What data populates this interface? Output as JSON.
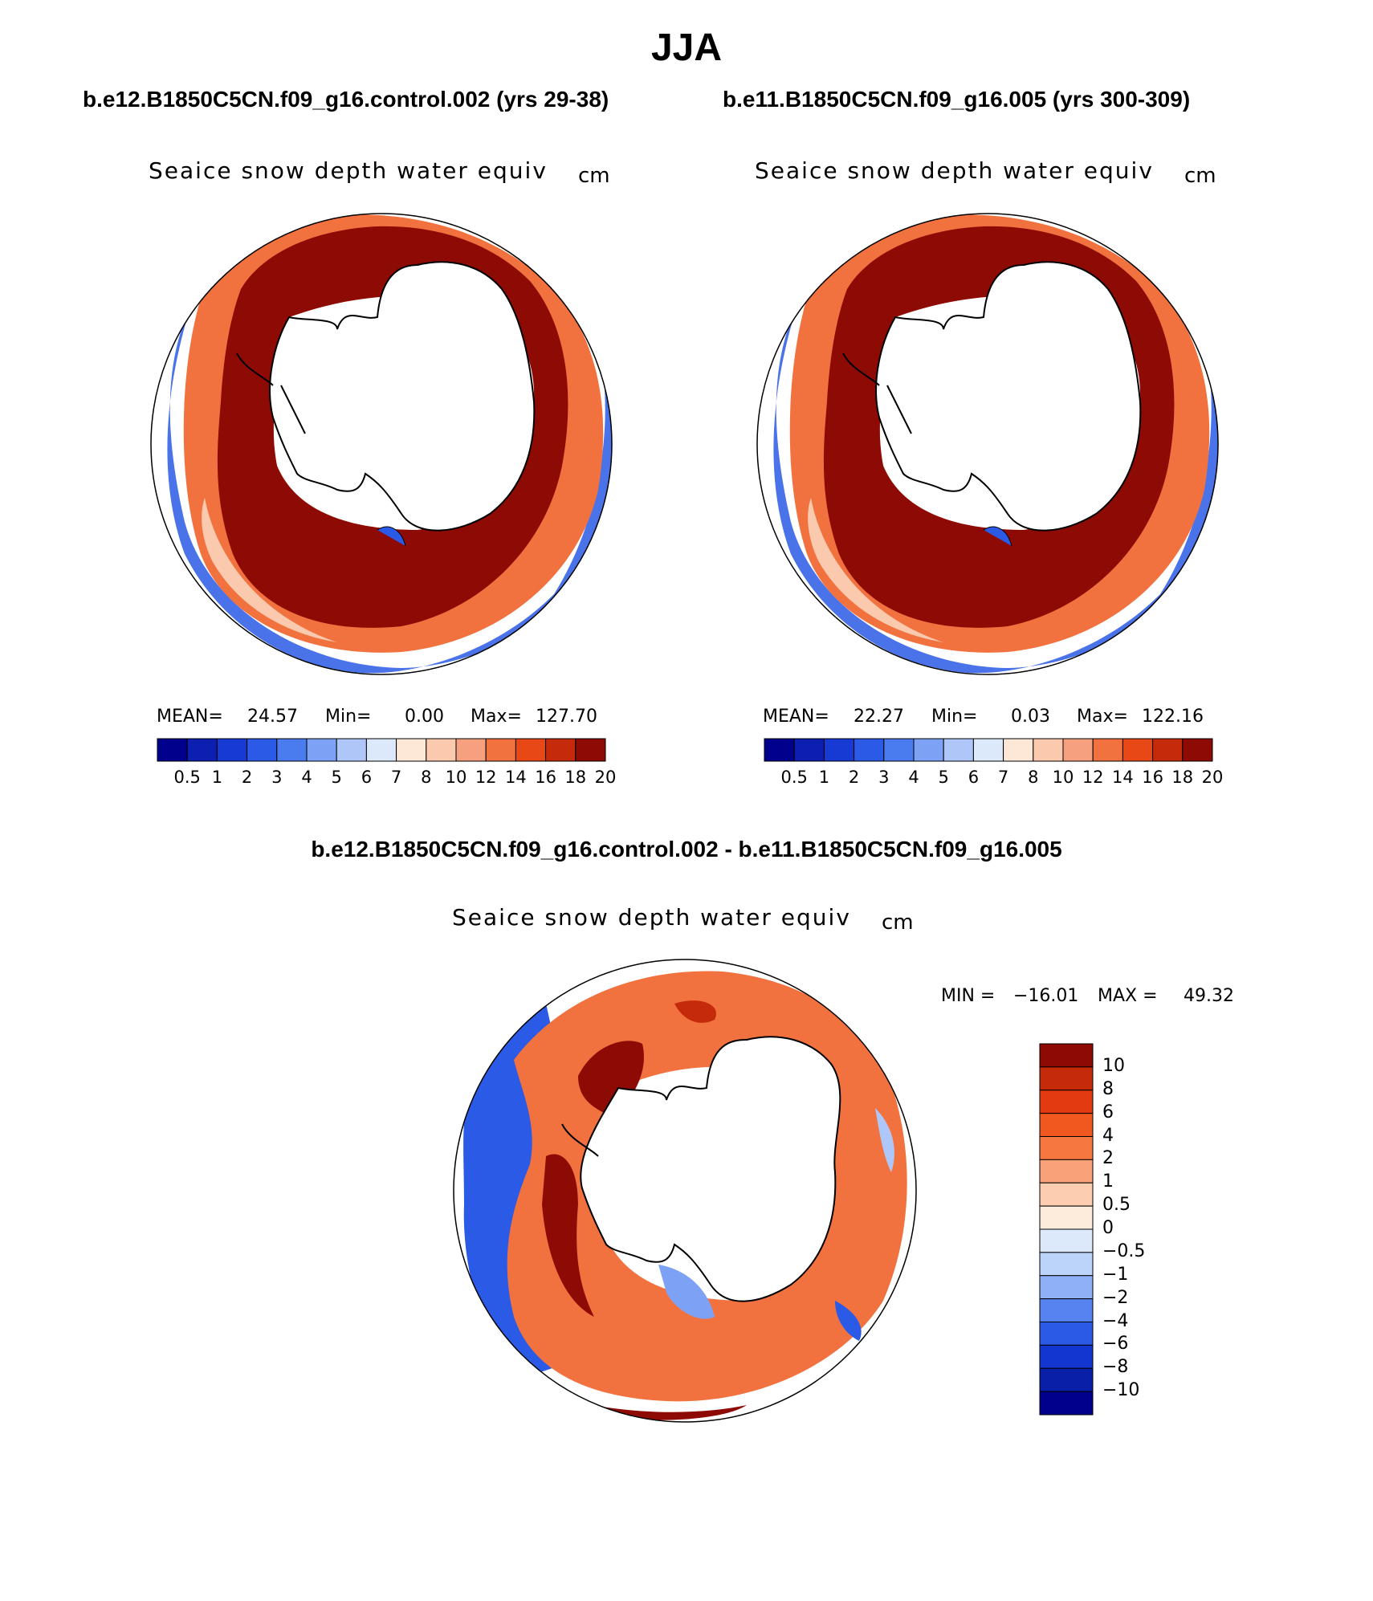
{
  "title": "JJA",
  "panels": [
    {
      "case": "b.e12.B1850C5CN.f09_g16.control.002 (yrs 29-38)",
      "variable": "Seaice snow depth water equiv",
      "units": "cm",
      "stats": {
        "mean_label": "MEAN=",
        "mean": "24.57",
        "min_label": "Min=",
        "min": "0.00",
        "max_label": "Max=",
        "max": "127.70"
      }
    },
    {
      "case": "b.e11.B1850C5CN.f09_g16.005 (yrs 300-309)",
      "variable": "Seaice snow depth water equiv",
      "units": "cm",
      "stats": {
        "mean_label": "MEAN=",
        "mean": "22.27",
        "min_label": "Min=",
        "min": "0.03",
        "max_label": "Max=",
        "max": "122.16"
      }
    }
  ],
  "difference": {
    "title": "b.e12.B1850C5CN.f09_g16.control.002 - b.e11.B1850C5CN.f09_g16.005",
    "variable": "Seaice snow depth water equiv",
    "units": "cm",
    "min_label": "MIN =",
    "min": "−16.01",
    "max_label": "MAX =",
    "max": "49.32"
  },
  "chart_data": [
    {
      "type": "heatmap",
      "projection": "south-polar-stereographic",
      "title": "b.e12.B1850C5CN.f09_g16.control.002 (yrs 29-38)",
      "variable": "Seaice snow depth water equiv",
      "units": "cm",
      "levels": [
        "0.5",
        "1",
        "2",
        "3",
        "4",
        "5",
        "6",
        "7",
        "8",
        "10",
        "12",
        "14",
        "16",
        "18",
        "20"
      ],
      "colors": [
        "#00008c",
        "#0c1fb0",
        "#1739d4",
        "#2a5ae6",
        "#4a7cf0",
        "#7da2f5",
        "#aec6f8",
        "#dce9fb",
        "#fde8d8",
        "#fbc9ad",
        "#f7a07f",
        "#f2723f",
        "#e84816",
        "#c52b0a",
        "#8e0a05"
      ],
      "mean": 24.57,
      "min": 0.0,
      "max": 127.7
    },
    {
      "type": "heatmap",
      "projection": "south-polar-stereographic",
      "title": "b.e11.B1850C5CN.f09_g16.005 (yrs 300-309)",
      "variable": "Seaice snow depth water equiv",
      "units": "cm",
      "levels": [
        "0.5",
        "1",
        "2",
        "3",
        "4",
        "5",
        "6",
        "7",
        "8",
        "10",
        "12",
        "14",
        "16",
        "18",
        "20"
      ],
      "colors": [
        "#00008c",
        "#0c1fb0",
        "#1739d4",
        "#2a5ae6",
        "#4a7cf0",
        "#7da2f5",
        "#aec6f8",
        "#dce9fb",
        "#fde8d8",
        "#fbc9ad",
        "#f7a07f",
        "#f2723f",
        "#e84816",
        "#c52b0a",
        "#8e0a05"
      ],
      "mean": 22.27,
      "min": 0.03,
      "max": 122.16
    },
    {
      "type": "heatmap",
      "projection": "south-polar-stereographic",
      "title": "b.e12.B1850C5CN.f09_g16.control.002 - b.e11.B1850C5CN.f09_g16.005",
      "variable": "Seaice snow depth water equiv",
      "units": "cm",
      "levels": [
        "10",
        "8",
        "6",
        "4",
        "2",
        "1",
        "0.5",
        "0",
        "−0.5",
        "−1",
        "−2",
        "−4",
        "−6",
        "−8",
        "−10"
      ],
      "colors": [
        "#8e0a05",
        "#c52b0a",
        "#e43a10",
        "#f0581f",
        "#f5793f",
        "#f9a27a",
        "#fccdb0",
        "#fdebdc",
        "#dce9fb",
        "#bcd3fa",
        "#8fb0f6",
        "#5683ef",
        "#2a5ae6",
        "#1236cf",
        "#0a1fa8",
        "#00008c"
      ],
      "min": -16.01,
      "max": 49.32
    }
  ]
}
